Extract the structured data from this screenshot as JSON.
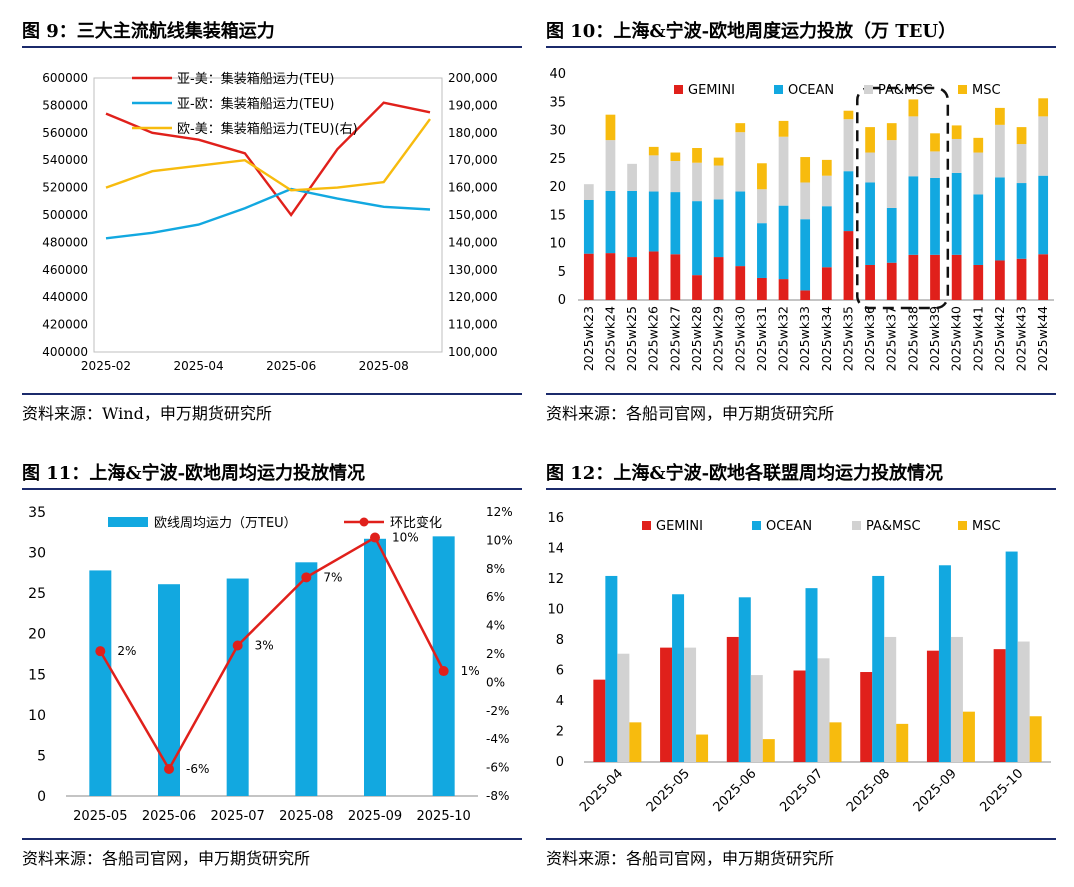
{
  "charts": {
    "c9": {
      "title": "图 9：三大主流航线集装箱运力",
      "source": "资料来源：Wind，申万期货研究所",
      "legend": [
        "亚-美：集装箱船运力(TEU)",
        "亚-欧：集装箱船运力(TEU)",
        "欧-美：集装箱船运力(TEU)(右)"
      ],
      "y_ticks": [
        "600000",
        "580000",
        "560000",
        "540000",
        "520000",
        "500000",
        "480000",
        "460000",
        "440000",
        "420000",
        "400000"
      ],
      "y2_ticks": [
        "200,000",
        "190,000",
        "180,000",
        "170,000",
        "160,000",
        "150,000",
        "140,000",
        "130,000",
        "120,000",
        "110,000",
        "100,000"
      ],
      "x_ticks": [
        "2025-02",
        "2025-04",
        "2025-06",
        "2025-08"
      ]
    },
    "c10": {
      "title": "图 10：上海&宁波-欧地周度运力投放（万 TEU）",
      "source": "资料来源：各船司官网，申万期货研究所",
      "legend": [
        "GEMINI",
        "OCEAN",
        "PA&MSC",
        "MSC"
      ],
      "y_ticks": [
        "40",
        "35",
        "30",
        "25",
        "20",
        "15",
        "10",
        "5",
        "0"
      ]
    },
    "c11": {
      "title": "图 11：上海&宁波-欧地周均运力投放情况",
      "source": "资料来源：各船司官网，申万期货研究所",
      "legend": [
        "欧线周均运力（万TEU）",
        "环比变化"
      ],
      "y_ticks": [
        "35",
        "30",
        "25",
        "20",
        "15",
        "10",
        "5",
        "0"
      ],
      "y2_ticks": [
        "12%",
        "10%",
        "8%",
        "6%",
        "4%",
        "2%",
        "0%",
        "-2%",
        "-4%",
        "-6%",
        "-8%"
      ],
      "point_labels": [
        "2%",
        "-6%",
        "3%",
        "7%",
        "10%",
        "1%"
      ]
    },
    "c12": {
      "title": "图 12：上海&宁波-欧地各联盟周均运力投放情况",
      "source": "资料来源：各船司官网，申万期货研究所",
      "legend": [
        "GEMINI",
        "OCEAN",
        "PA&MSC",
        "MSC"
      ],
      "y_ticks": [
        "16",
        "14",
        "12",
        "10",
        "8",
        "6",
        "4",
        "2",
        "0"
      ]
    }
  },
  "colors": {
    "red": "#e0201b",
    "blue": "#12a8e0",
    "gray": "#d2d2d2",
    "yellow": "#f7bb0e",
    "navy": "#1b2a6b"
  },
  "chart_data": [
    {
      "type": "line",
      "title": "图 9：三大主流航线集装箱运力",
      "x": [
        "2025-02",
        "2025-03",
        "2025-04",
        "2025-05",
        "2025-06",
        "2025-07",
        "2025-08",
        "2025-09"
      ],
      "series": [
        {
          "name": "亚-美：集装箱船运力(TEU)",
          "axis": "left",
          "values": [
            574000,
            560000,
            555000,
            545000,
            500000,
            548000,
            582000,
            575000
          ]
        },
        {
          "name": "亚-欧：集装箱船运力(TEU)",
          "axis": "left",
          "values": [
            483000,
            487000,
            493000,
            505000,
            519000,
            512000,
            506000,
            504000
          ]
        },
        {
          "name": "欧-美：集装箱船运力(TEU)(右)",
          "axis": "right",
          "values": [
            160000,
            166000,
            168000,
            170000,
            159000,
            160000,
            162000,
            185000
          ]
        }
      ],
      "ylim": [
        400000,
        600000
      ],
      "y2lim": [
        100000,
        200000
      ]
    },
    {
      "type": "bar",
      "stacked": true,
      "title": "图 10：上海&宁波-欧地周度运力投放（万 TEU）",
      "categories": [
        "2025wk23",
        "2025wk24",
        "2025wk25",
        "2025wk26",
        "2025wk27",
        "2025wk28",
        "2025wk29",
        "2025wk30",
        "2025wk31",
        "2025wk32",
        "2025wk33",
        "2025wk34",
        "2025wk35",
        "2025wk36",
        "2025wk37",
        "2025wk38",
        "2025wk39",
        "2025wk40",
        "2025wk41",
        "2025wk42",
        "2025wk43",
        "2025wk44"
      ],
      "series": [
        {
          "name": "GEMINI",
          "values": [
            8.2,
            8.3,
            7.6,
            8.6,
            8.1,
            4.4,
            7.6,
            6.0,
            3.9,
            3.7,
            1.7,
            5.8,
            12.2,
            6.2,
            6.6,
            8.0,
            8.0,
            8.0,
            6.2,
            7.0,
            7.3,
            8.1
          ]
        },
        {
          "name": "OCEAN",
          "values": [
            9.5,
            11.0,
            11.7,
            10.6,
            11.0,
            13.1,
            10.2,
            13.2,
            9.7,
            13.0,
            12.6,
            10.8,
            10.6,
            14.6,
            9.7,
            13.9,
            13.6,
            14.5,
            12.5,
            14.7,
            13.4,
            13.9
          ]
        },
        {
          "name": "PA&MSC",
          "values": [
            2.8,
            9.0,
            4.8,
            6.4,
            5.5,
            6.8,
            6.0,
            10.5,
            6.0,
            12.2,
            6.5,
            5.4,
            9.2,
            5.3,
            12.0,
            10.6,
            4.7,
            6.0,
            7.4,
            9.3,
            6.9,
            10.5
          ]
        },
        {
          "name": "MSC",
          "values": [
            0,
            4.5,
            0,
            1.5,
            1.5,
            2.6,
            1.4,
            1.6,
            4.6,
            2.8,
            4.5,
            2.8,
            1.5,
            4.5,
            3.0,
            3.0,
            3.2,
            2.4,
            2.6,
            3.0,
            3.0,
            3.2
          ]
        }
      ],
      "ylim": [
        0,
        40
      ]
    },
    {
      "type": "bar",
      "title": "图 11：上海&宁波-欧地周均运力投放情况",
      "categories": [
        "2025-05",
        "2025-06",
        "2025-07",
        "2025-08",
        "2025-09",
        "2025-10"
      ],
      "series": [
        {
          "name": "欧线周均运力（万TEU）",
          "type": "bar",
          "axis": "left",
          "values": [
            27.8,
            26.1,
            26.8,
            28.8,
            31.7,
            32.0
          ]
        },
        {
          "name": "环比变化",
          "type": "line",
          "axis": "right",
          "values": [
            2.2,
            -6.1,
            2.6,
            7.4,
            10.2,
            0.8
          ]
        }
      ],
      "ylim": [
        0,
        35
      ],
      "y2lim": [
        -8,
        12
      ]
    },
    {
      "type": "bar",
      "title": "图 12：上海&宁波-欧地各联盟周均运力投放情况",
      "categories": [
        "2025-04",
        "2025-05",
        "2025-06",
        "2025-07",
        "2025-08",
        "2025-09",
        "2025-10"
      ],
      "series": [
        {
          "name": "GEMINI",
          "values": [
            5.4,
            7.5,
            8.2,
            6.0,
            5.9,
            7.3,
            7.4
          ]
        },
        {
          "name": "OCEAN",
          "values": [
            12.2,
            11.0,
            10.8,
            11.4,
            12.2,
            12.9,
            13.8
          ]
        },
        {
          "name": "PA&MSC",
          "values": [
            7.1,
            7.5,
            5.7,
            6.8,
            8.2,
            8.2,
            7.9
          ]
        },
        {
          "name": "MSC",
          "values": [
            2.6,
            1.8,
            1.5,
            2.6,
            2.5,
            3.3,
            3.0
          ]
        }
      ],
      "ylim": [
        0,
        16
      ]
    }
  ]
}
